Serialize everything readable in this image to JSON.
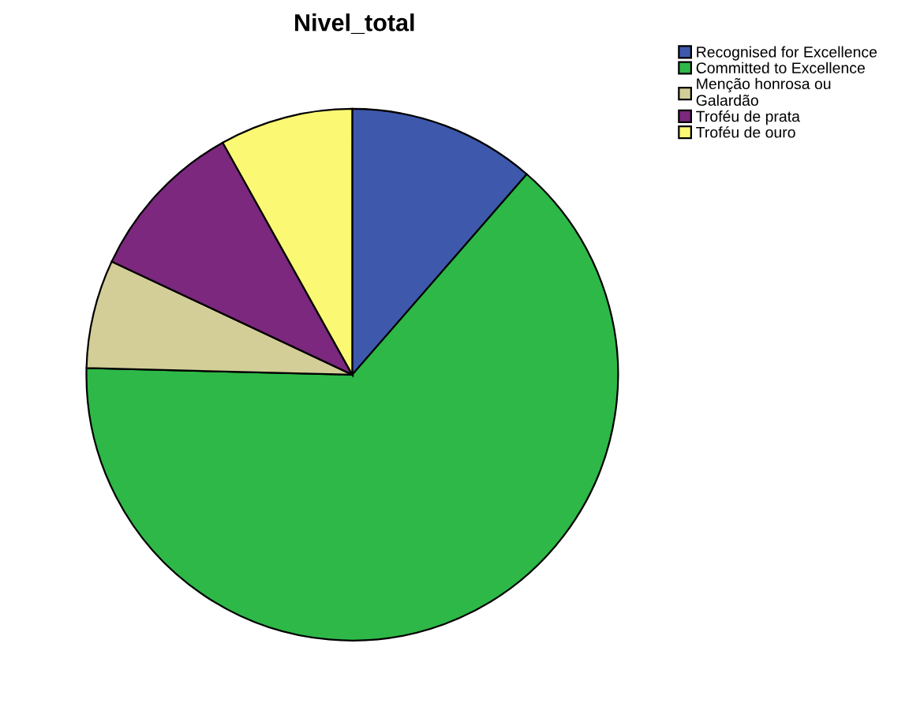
{
  "chart_data": {
    "type": "pie",
    "title": "Nivel_total",
    "categories": [
      "Recognised for Excellence",
      "Committed to Excellence",
      "Menção honrosa ou\nGalardão",
      "Troféu de prata",
      "Troféu de ouro"
    ],
    "values": [
      11.4,
      64.0,
      6.6,
      9.9,
      8.1
    ],
    "colors": [
      "#3e58ac",
      "#2eb848",
      "#d3ce97",
      "#7b287e",
      "#fbf873"
    ],
    "legend": "top right"
  }
}
